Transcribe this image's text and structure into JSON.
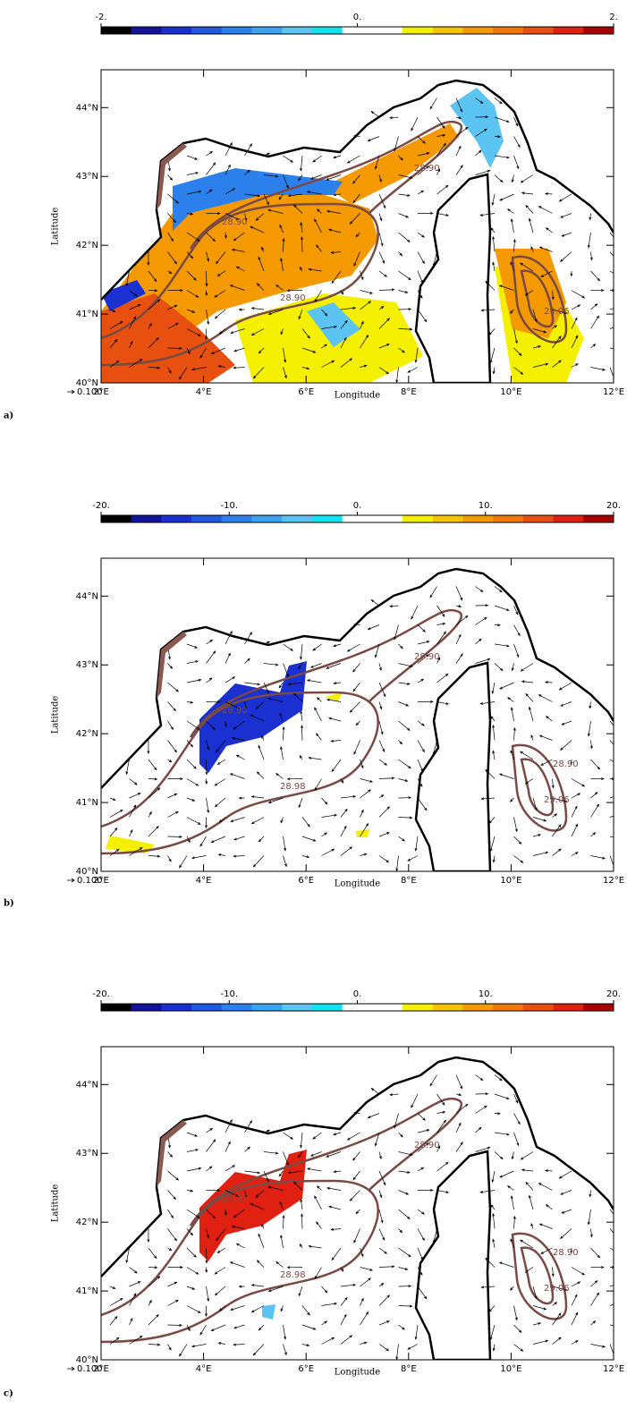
{
  "colormap": [
    "#000000",
    "#12129a",
    "#1a30d0",
    "#2058e0",
    "#2c80ec",
    "#3aa4f0",
    "#5cc4f2",
    "#10e4f0",
    "#ffffff",
    "#ffffff",
    "#f4f000",
    "#f4c400",
    "#f49a00",
    "#f07808",
    "#e85010",
    "#e02010",
    "#a80000"
  ],
  "panels": [
    {
      "label": "a)",
      "colorbar": {
        "ticks": [
          {
            "value": -2,
            "label": "-2."
          },
          {
            "value": 0,
            "label": "0."
          },
          {
            "value": 2,
            "label": "2."
          }
        ]
      },
      "xlabel": "Longitude",
      "ylabel": "Latitude",
      "vector_label": "0.100",
      "xlim": [
        2,
        12
      ],
      "ylim": [
        40,
        44.55
      ],
      "xticks": [
        {
          "value": 2,
          "label": "2°E"
        },
        {
          "value": 4,
          "label": "4°E"
        },
        {
          "value": 6,
          "label": "6°E"
        },
        {
          "value": 8,
          "label": "8°E"
        },
        {
          "value": 10,
          "label": "10°E"
        },
        {
          "value": 12,
          "label": "12°E"
        }
      ],
      "yticks": [
        {
          "value": 40,
          "label": "40°N"
        },
        {
          "value": 41,
          "label": "41°N"
        },
        {
          "value": 42,
          "label": "42°N"
        },
        {
          "value": 43,
          "label": "43°N"
        },
        {
          "value": 44,
          "label": "44°N"
        }
      ],
      "contour_labels": [
        "28.90",
        "28.90",
        "29.06",
        "28.90"
      ]
    },
    {
      "label": "b)",
      "colorbar": {
        "ticks": [
          {
            "value": -20,
            "label": "-20."
          },
          {
            "value": -10,
            "label": "-10."
          },
          {
            "value": 0,
            "label": "0."
          },
          {
            "value": 10,
            "label": "10."
          },
          {
            "value": 20,
            "label": "20."
          }
        ]
      },
      "xlabel": "Longitude",
      "ylabel": "Latitude",
      "vector_label": "0.100",
      "xlim": [
        2,
        12
      ],
      "ylim": [
        40,
        44.55
      ],
      "xticks": [
        {
          "value": 2,
          "label": "2°E"
        },
        {
          "value": 4,
          "label": "4°E"
        },
        {
          "value": 6,
          "label": "6°E"
        },
        {
          "value": 8,
          "label": "8°E"
        },
        {
          "value": 10,
          "label": "10°E"
        },
        {
          "value": 12,
          "label": "12°E"
        }
      ],
      "yticks": [
        {
          "value": 40,
          "label": "40°N"
        },
        {
          "value": 41,
          "label": "41°N"
        },
        {
          "value": 42,
          "label": "42°N"
        },
        {
          "value": 43,
          "label": "43°N"
        },
        {
          "value": 44,
          "label": "44°N"
        }
      ],
      "contour_labels": [
        "28.90",
        "28.90",
        "29.06",
        "28.98",
        "28.90"
      ]
    },
    {
      "label": "c)",
      "colorbar": {
        "ticks": [
          {
            "value": -20,
            "label": "-20."
          },
          {
            "value": -10,
            "label": "-10."
          },
          {
            "value": 0,
            "label": "0."
          },
          {
            "value": 10,
            "label": "10."
          },
          {
            "value": 20,
            "label": "20."
          }
        ]
      },
      "xlabel": "Longitude",
      "ylabel": "Latitude",
      "vector_label": "0.100",
      "xlim": [
        2,
        12
      ],
      "ylim": [
        40,
        44.55
      ],
      "xticks": [
        {
          "value": 2,
          "label": "2°E"
        },
        {
          "value": 4,
          "label": "4°E"
        },
        {
          "value": 6,
          "label": "6°E"
        },
        {
          "value": 8,
          "label": "8°E"
        },
        {
          "value": 10,
          "label": "10°E"
        },
        {
          "value": 12,
          "label": "12°E"
        }
      ],
      "yticks": [
        {
          "value": 40,
          "label": "40°N"
        },
        {
          "value": 41,
          "label": "41°N"
        },
        {
          "value": 42,
          "label": "42°N"
        },
        {
          "value": 43,
          "label": "43°N"
        },
        {
          "value": 44,
          "label": "44°N"
        }
      ],
      "contour_labels": [
        "28.90",
        "28.90",
        "29.06",
        "28.98",
        "28.90"
      ]
    }
  ]
}
